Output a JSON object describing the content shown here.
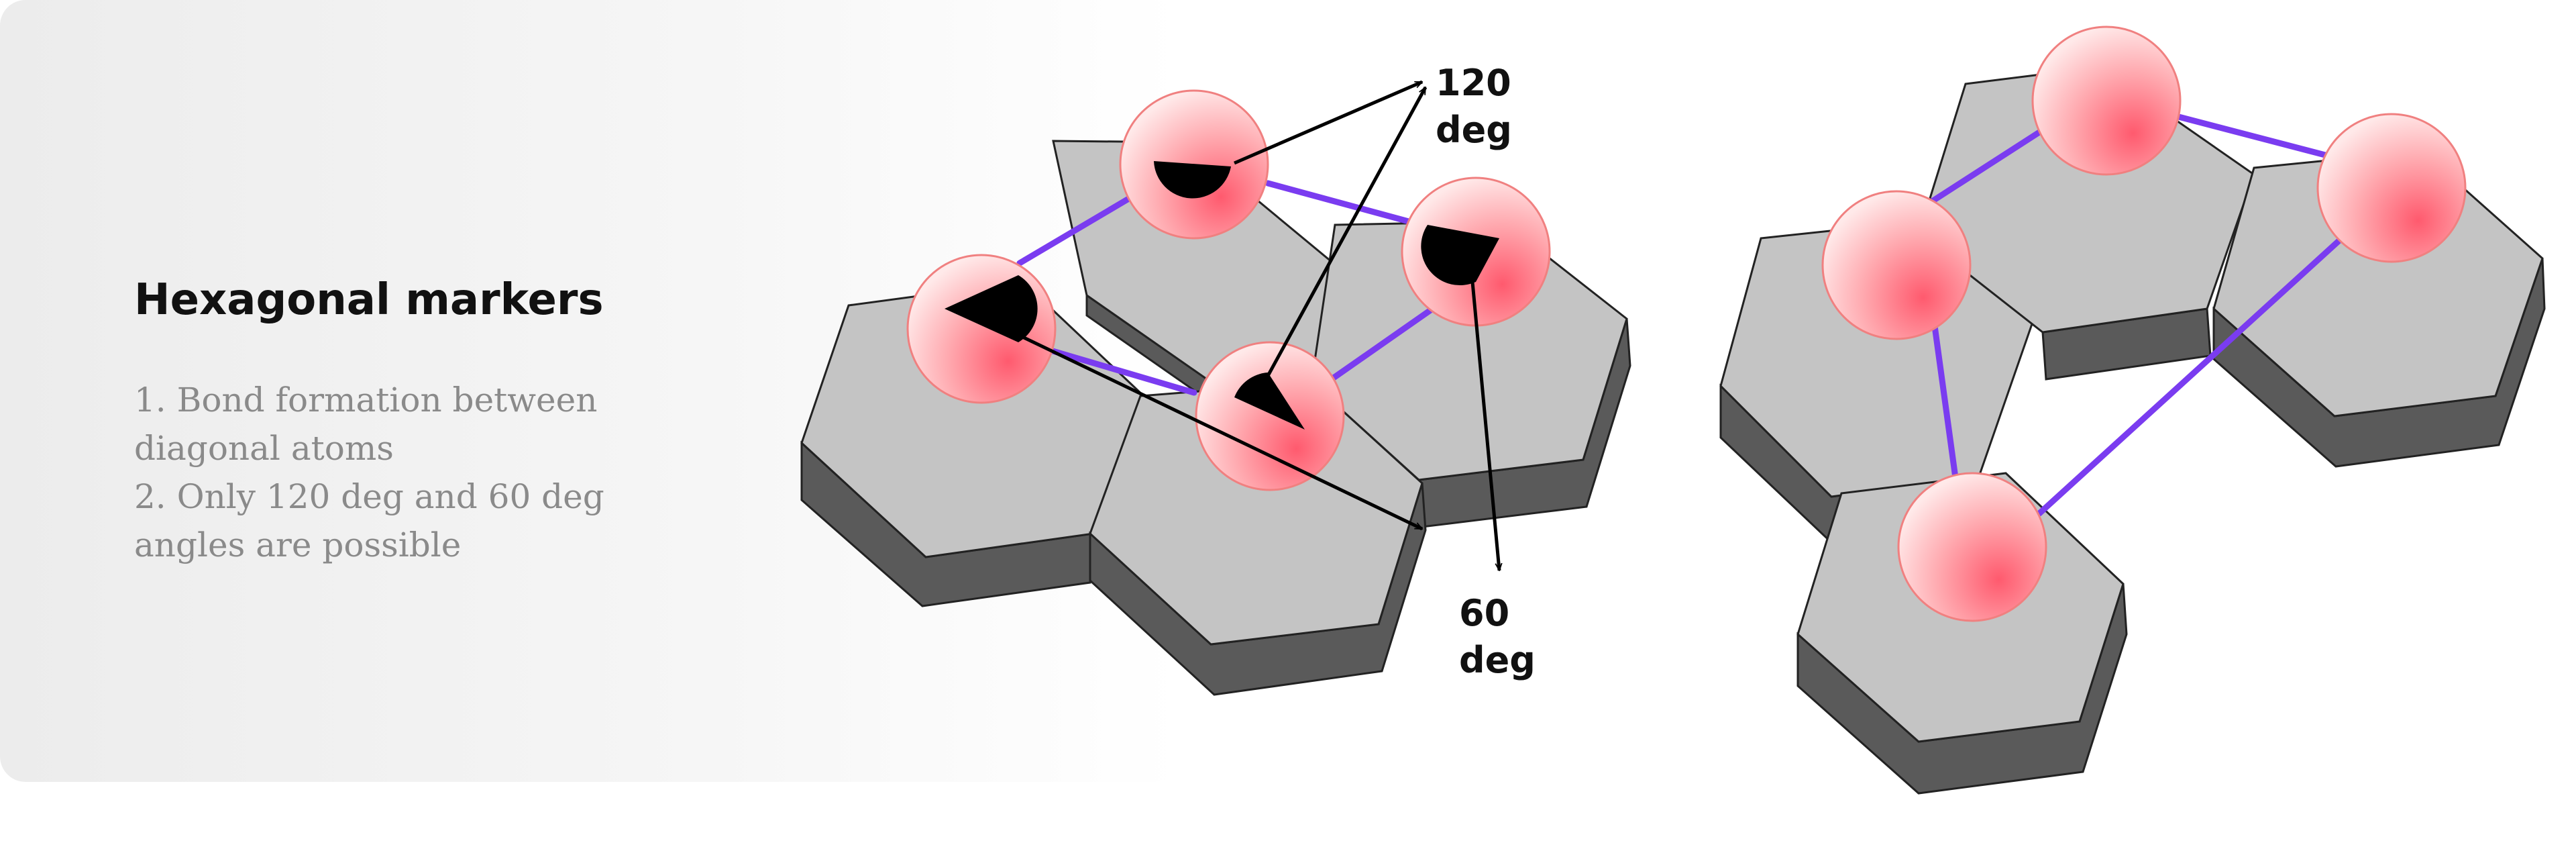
{
  "sidebar": {
    "title": "Hexagonal markers",
    "notes": [
      "1. Bond formation between diagonal atoms",
      "2. Only 120 deg and 60 deg angles are possible"
    ]
  },
  "angle_labels": {
    "a120_line1": "120",
    "a120_line2": "deg",
    "a60_line1": "60",
    "a60_line2": "deg"
  },
  "colors": {
    "tile_top": "#c4c4c4",
    "tile_side": "#5a5a5a",
    "bond": "#7a3cf0",
    "atom_light": "#ffe6e6",
    "atom_dark": "#ff6b7a",
    "marker": "#000000"
  }
}
